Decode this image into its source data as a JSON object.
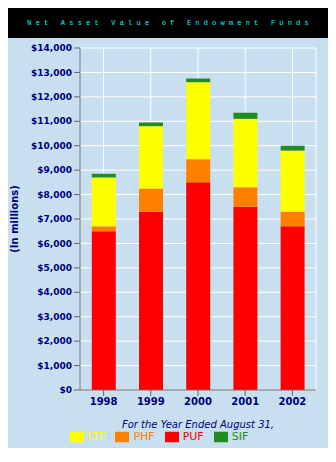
{
  "chart_data": {
    "type": "bar",
    "stacked": true,
    "title": "N e t   A s s e t   V a l u e   o f   E n d o w m e n t   F u n d s",
    "xlabel": "For the Year Ended August 31,",
    "ylabel": "(In millions)",
    "categories": [
      "1998",
      "1999",
      "2000",
      "2001",
      "2002"
    ],
    "series": [
      {
        "name": "PUF",
        "color": "#FF0000",
        "values": [
          6500,
          7300,
          8500,
          7500,
          6700
        ]
      },
      {
        "name": "PHF",
        "color": "#FF8000",
        "values": [
          200,
          950,
          950,
          800,
          600
        ]
      },
      {
        "name": "LTF",
        "color": "#FFFF00",
        "values": [
          2000,
          2550,
          3150,
          2800,
          2500
        ]
      },
      {
        "name": "SIF",
        "color": "#228B22",
        "values": [
          150,
          150,
          150,
          250,
          200
        ]
      }
    ],
    "ylim": [
      0,
      14000
    ],
    "yticks": [
      {
        "value": 0,
        "label": "$0"
      },
      {
        "value": 1000,
        "label": "$1,000"
      },
      {
        "value": 2000,
        "label": "$2,000"
      },
      {
        "value": 3000,
        "label": "$3,000"
      },
      {
        "value": 4000,
        "label": "$4,000"
      },
      {
        "value": 5000,
        "label": "$5,000"
      },
      {
        "value": 6000,
        "label": "$6,000"
      },
      {
        "value": 7000,
        "label": "$7,000"
      },
      {
        "value": 8000,
        "label": "$8,000"
      },
      {
        "value": 9000,
        "label": "$9,000"
      },
      {
        "value": 10000,
        "label": "$10,000"
      },
      {
        "value": 11000,
        "label": "$11,000"
      },
      {
        "value": 12000,
        "label": "$12,000"
      },
      {
        "value": 13000,
        "label": "$13,000"
      },
      {
        "value": 14000,
        "label": "$14,000"
      }
    ],
    "grid": true,
    "legend": "bottom"
  }
}
